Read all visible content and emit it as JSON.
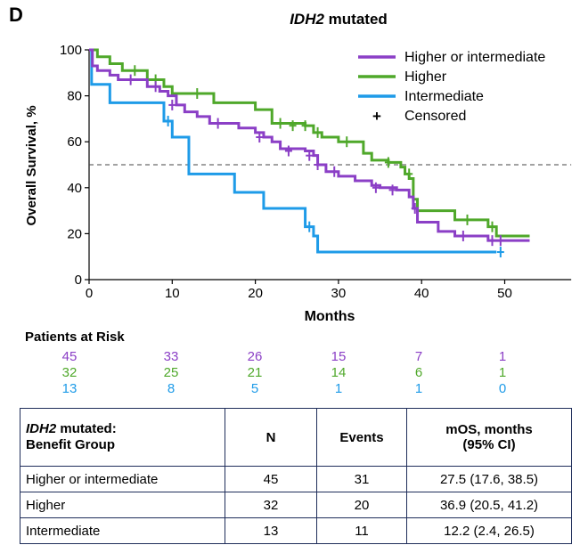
{
  "panel_letter": "D",
  "chart_data": {
    "type": "line",
    "title_italic": "IDH2",
    "title_rest": " mutated",
    "xlabel": "Months",
    "ylabel": "Overall Survival, %",
    "xlim": [
      0,
      58
    ],
    "ylim": [
      0,
      100
    ],
    "x_ticks": [
      0,
      10,
      20,
      30,
      40,
      50
    ],
    "y_ticks": [
      0,
      20,
      40,
      60,
      80,
      100
    ],
    "reference_line_y": 50,
    "legend_position": "top-right",
    "series": [
      {
        "name": "Higher or intermediate",
        "color": "#8b3fc6",
        "points": [
          [
            0,
            100
          ],
          [
            0.4,
            93
          ],
          [
            1,
            91
          ],
          [
            2.5,
            89
          ],
          [
            3.5,
            87
          ],
          [
            7,
            84
          ],
          [
            8.5,
            82
          ],
          [
            9.5,
            80
          ],
          [
            10.5,
            76
          ],
          [
            11.5,
            73
          ],
          [
            13,
            71
          ],
          [
            14.5,
            68
          ],
          [
            18,
            66
          ],
          [
            20,
            64
          ],
          [
            21,
            62
          ],
          [
            22,
            60
          ],
          [
            23,
            57
          ],
          [
            26,
            56
          ],
          [
            27,
            54
          ],
          [
            27.5,
            50
          ],
          [
            28.5,
            47
          ],
          [
            30,
            45
          ],
          [
            32,
            43
          ],
          [
            34,
            41
          ],
          [
            35,
            40
          ],
          [
            37,
            39
          ],
          [
            38.5,
            36
          ],
          [
            39,
            31
          ],
          [
            39.5,
            25
          ],
          [
            42,
            21
          ],
          [
            44,
            19
          ],
          [
            48,
            17
          ],
          [
            53,
            17
          ]
        ],
        "censor": [
          [
            5,
            87
          ],
          [
            8,
            84
          ],
          [
            10,
            76
          ],
          [
            15.5,
            68
          ],
          [
            20.5,
            62
          ],
          [
            24,
            56
          ],
          [
            26.5,
            54
          ],
          [
            27.5,
            50
          ],
          [
            29.5,
            47
          ],
          [
            34.5,
            40
          ],
          [
            36.5,
            39
          ],
          [
            39.2,
            31
          ],
          [
            45,
            19
          ],
          [
            48.5,
            17
          ],
          [
            49.5,
            17
          ]
        ]
      },
      {
        "name": "Higher",
        "color": "#4fa82a",
        "points": [
          [
            0,
            100
          ],
          [
            1,
            97
          ],
          [
            2.5,
            94
          ],
          [
            4,
            91
          ],
          [
            7,
            87
          ],
          [
            9,
            84
          ],
          [
            10,
            81
          ],
          [
            11,
            81
          ],
          [
            15,
            77
          ],
          [
            20,
            74
          ],
          [
            22,
            68
          ],
          [
            26,
            67
          ],
          [
            27,
            64
          ],
          [
            28,
            62
          ],
          [
            30,
            60
          ],
          [
            33,
            55
          ],
          [
            34,
            52
          ],
          [
            36,
            51
          ],
          [
            37.5,
            49
          ],
          [
            38,
            46
          ],
          [
            38.5,
            44
          ],
          [
            39,
            35
          ],
          [
            39.5,
            30
          ],
          [
            44,
            26
          ],
          [
            48,
            23
          ],
          [
            49,
            19
          ],
          [
            53,
            19
          ]
        ],
        "censor": [
          [
            5.5,
            91
          ],
          [
            8,
            87
          ],
          [
            13,
            81
          ],
          [
            23,
            68
          ],
          [
            24.5,
            67
          ],
          [
            26,
            67
          ],
          [
            27.5,
            64
          ],
          [
            31,
            60
          ],
          [
            36,
            51
          ],
          [
            38.5,
            46
          ],
          [
            45.5,
            26
          ],
          [
            48.5,
            23
          ]
        ]
      },
      {
        "name": "Intermediate",
        "color": "#1e9be8",
        "points": [
          [
            0,
            100
          ],
          [
            0.3,
            85
          ],
          [
            2.5,
            77
          ],
          [
            9,
            69
          ],
          [
            10,
            62
          ],
          [
            12,
            46
          ],
          [
            17.5,
            38
          ],
          [
            21,
            31
          ],
          [
            26,
            23
          ],
          [
            27,
            19
          ],
          [
            27.5,
            12
          ],
          [
            49,
            12
          ]
        ],
        "censor": [
          [
            9.5,
            69
          ],
          [
            26.5,
            23
          ],
          [
            49.5,
            12
          ]
        ]
      }
    ],
    "censored_label": "Censored",
    "censored_symbol": "+"
  },
  "risk_table": {
    "title": "Patients at Risk",
    "rows": [
      {
        "color": "#8b3fc6",
        "values": [
          "45",
          "33",
          "26",
          "15",
          "7",
          "1"
        ]
      },
      {
        "color": "#4fa82a",
        "values": [
          "32",
          "25",
          "21",
          "14",
          "6",
          "1"
        ]
      },
      {
        "color": "#1e9be8",
        "values": [
          "13",
          "8",
          "5",
          "1",
          "1",
          "0"
        ]
      }
    ]
  },
  "summary_table": {
    "header": {
      "group_italic": "IDH2",
      "group_rest": " mutated:",
      "group_line2": "Benefit Group",
      "n": "N",
      "events": "Events",
      "mos_line1": "mOS, months",
      "mos_line2": "(95% CI)"
    },
    "rows": [
      {
        "group": "Higher or intermediate",
        "n": "45",
        "events": "31",
        "mos": "27.5 (17.6, 38.5)"
      },
      {
        "group": "Higher",
        "n": "32",
        "events": "20",
        "mos": "36.9 (20.5, 41.2)"
      },
      {
        "group": "Intermediate",
        "n": "13",
        "events": "11",
        "mos": "12.2 (2.4, 26.5)"
      }
    ]
  }
}
